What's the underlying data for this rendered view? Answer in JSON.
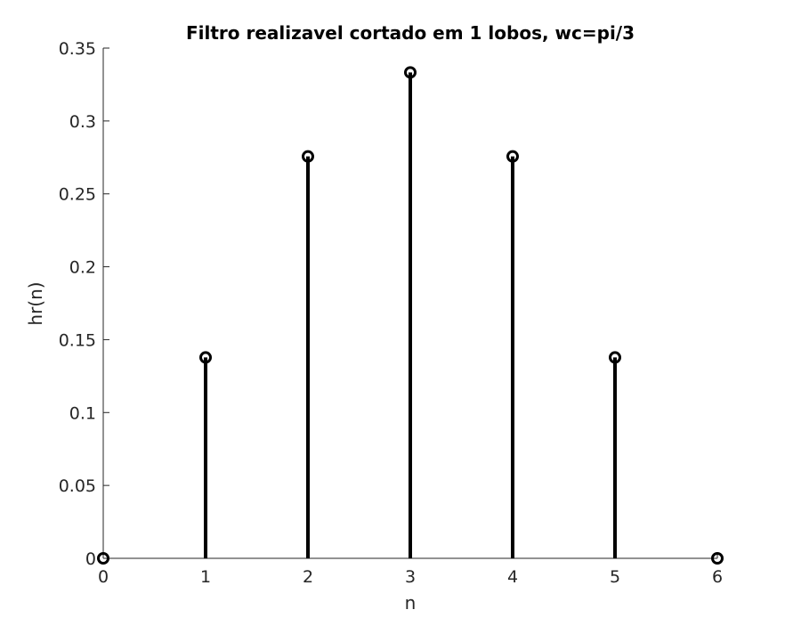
{
  "chart_data": {
    "type": "stem",
    "title": "Filtro realizavel cortado em 1 lobos, wc=pi/3",
    "xlabel": "n",
    "ylabel": "hr(n)",
    "x": [
      0,
      1,
      2,
      3,
      4,
      5,
      6
    ],
    "values": [
      0,
      0.1378,
      0.2757,
      0.3333,
      0.2757,
      0.1378,
      0
    ],
    "xlim": [
      0,
      6
    ],
    "ylim": [
      0,
      0.35
    ],
    "xticks": [
      0,
      1,
      2,
      3,
      4,
      5,
      6
    ],
    "xtick_labels": [
      "0",
      "1",
      "2",
      "3",
      "4",
      "5",
      "6"
    ],
    "yticks": [
      0,
      0.05,
      0.1,
      0.15,
      0.2,
      0.25,
      0.3,
      0.35
    ],
    "ytick_labels": [
      "0",
      "0.05",
      "0.1",
      "0.15",
      "0.2",
      "0.25",
      "0.3",
      "0.35"
    ],
    "grid": false,
    "legend": "none",
    "stem_color": "#000000",
    "axis_color": "#262626"
  }
}
